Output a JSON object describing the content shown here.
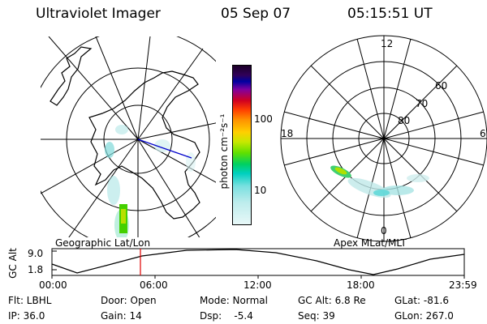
{
  "header": {
    "title": "Ultraviolet Imager",
    "date": "05 Sep 07",
    "time": "05:15:51 UT"
  },
  "colorbar": {
    "unit_label": "photon cm⁻²s⁻¹",
    "ticks": [
      "100",
      "10"
    ]
  },
  "polar_plot": {
    "labels": [
      "12",
      "18",
      "6",
      "0"
    ],
    "latitude_labels": [
      "60",
      "70",
      "80"
    ]
  },
  "panel_titles": {
    "geographic": "Geographic Lat/Lon",
    "apex": "Apex MLat/MLT"
  },
  "altitude_plot": {
    "ylabel": "GC Alt",
    "y_ticks": [
      "9.0",
      "1.8"
    ],
    "x_ticks": [
      "00:00",
      "06:00",
      "12:00",
      "18:00",
      "23:59"
    ],
    "current_time_marker": "05:15"
  },
  "info": {
    "flt": "Flt: LBHL",
    "ip": "IP: 36.0",
    "door": "Door: Open",
    "gain": "Gain: 14",
    "mode": "Mode: Normal",
    "dsp": "Dsp:    -5.4",
    "gc_alt": "GC Alt: 6.8 Re",
    "seq": "Seq: 39",
    "glat": "GLat: -81.6",
    "glon": "GLon: 267.0"
  },
  "colors": {
    "marker": "#e00000",
    "meridian": "#0000cc"
  }
}
